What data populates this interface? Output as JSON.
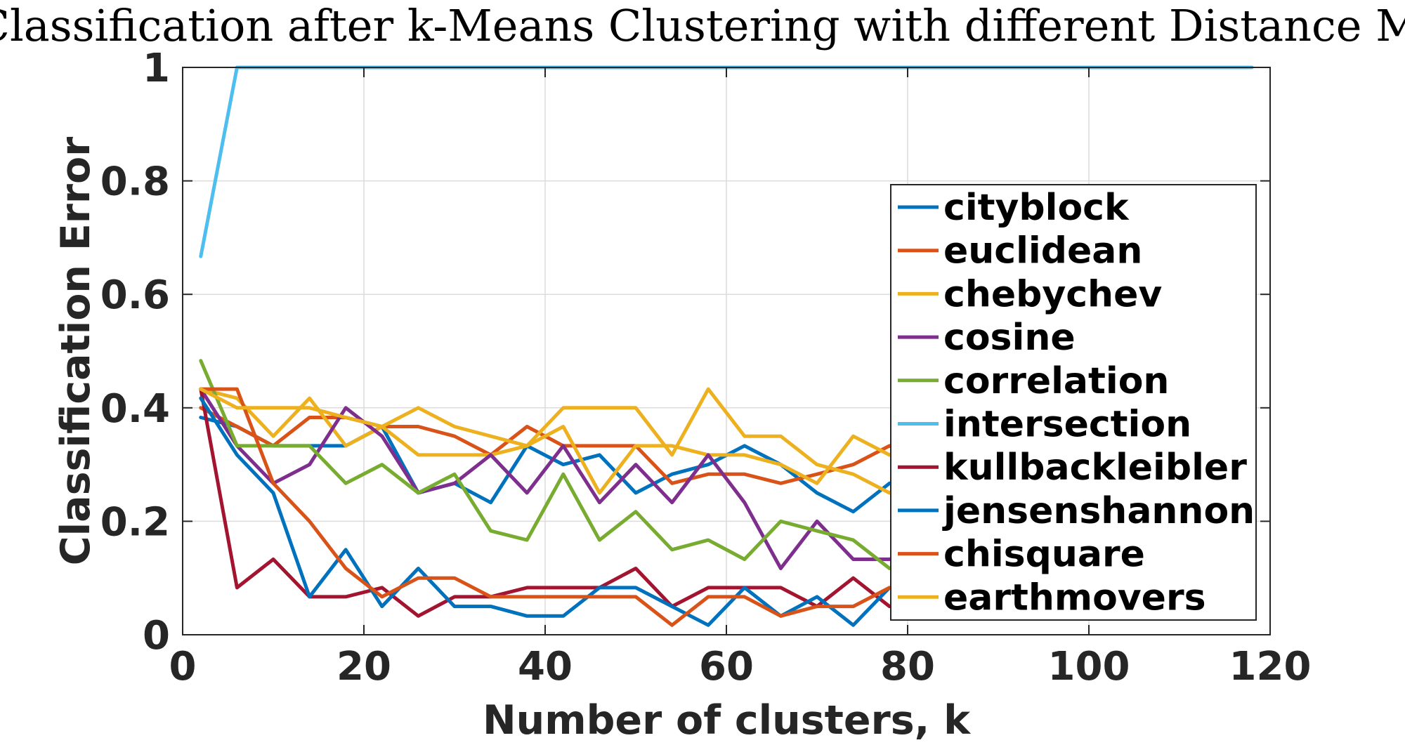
{
  "chart_data": {
    "type": "line",
    "title": "kNN Classification after k-Means Clustering with different Distance Metrics",
    "xlabel": "Number of clusters, k",
    "ylabel": "Classification Error",
    "xlim": [
      0,
      120
    ],
    "ylim": [
      0,
      1
    ],
    "xticks": [
      0,
      20,
      40,
      60,
      80,
      100,
      120
    ],
    "yticks": [
      0,
      0.2,
      0.4,
      0.6,
      0.8,
      1
    ],
    "xtick_labels": [
      "0",
      "20",
      "40",
      "60",
      "80",
      "100",
      "120"
    ],
    "ytick_labels": [
      "0",
      "0.2",
      "0.4",
      "0.6",
      "0.8",
      "1"
    ],
    "grid": true,
    "legend_position": "right",
    "x": [
      2,
      6,
      10,
      14,
      18,
      22,
      26,
      30,
      34,
      38,
      42,
      46,
      50,
      54,
      58,
      62,
      66,
      70,
      74,
      78,
      82,
      86,
      90,
      94,
      98,
      102,
      106,
      110,
      114,
      118
    ],
    "series": [
      {
        "name": "cityblock",
        "color": "#0072BD",
        "values": [
          0.383,
          0.367,
          0.333,
          0.333,
          0.333,
          0.367,
          0.25,
          0.267,
          0.233,
          0.333,
          0.3,
          0.317,
          0.25,
          0.283,
          0.3,
          0.333,
          0.3,
          0.25,
          0.217,
          0.267,
          0.25,
          0.267,
          0.25,
          0.267,
          0.25,
          0.25,
          0.267,
          0.25,
          0.267,
          0.25
        ]
      },
      {
        "name": "euclidean",
        "color": "#D95319",
        "values": [
          0.4,
          0.367,
          0.333,
          0.383,
          0.383,
          0.367,
          0.367,
          0.35,
          0.317,
          0.367,
          0.333,
          0.333,
          0.333,
          0.267,
          0.283,
          0.283,
          0.267,
          0.283,
          0.3,
          0.333,
          0.3,
          0.317,
          0.3,
          0.283,
          0.3,
          0.3,
          0.283,
          0.3,
          0.3,
          0.283
        ]
      },
      {
        "name": "chebychev",
        "color": "#EDB120",
        "values": [
          0.433,
          0.417,
          0.35,
          0.417,
          0.333,
          0.367,
          0.317,
          0.317,
          0.317,
          0.333,
          0.367,
          0.25,
          0.333,
          0.333,
          0.317,
          0.317,
          0.3,
          0.267,
          0.35,
          0.317,
          0.333,
          0.3,
          0.317,
          0.3,
          0.333,
          0.317,
          0.3,
          0.317,
          0.3,
          0.317
        ]
      },
      {
        "name": "cosine",
        "color": "#7E2F8E",
        "values": [
          0.433,
          0.333,
          0.267,
          0.3,
          0.4,
          0.35,
          0.25,
          0.267,
          0.317,
          0.25,
          0.333,
          0.233,
          0.3,
          0.233,
          0.317,
          0.233,
          0.117,
          0.2,
          0.133,
          0.133,
          0.15,
          0.133,
          0.15,
          0.133,
          0.15,
          0.133,
          0.15,
          0.133,
          0.15,
          0.133
        ]
      },
      {
        "name": "correlation",
        "color": "#77AC30",
        "values": [
          0.483,
          0.333,
          0.333,
          0.333,
          0.267,
          0.3,
          0.25,
          0.283,
          0.183,
          0.167,
          0.283,
          0.167,
          0.217,
          0.15,
          0.167,
          0.133,
          0.2,
          0.183,
          0.167,
          0.117,
          0.133,
          0.117,
          0.133,
          0.117,
          0.133,
          0.117,
          0.133,
          0.117,
          0.133,
          0.117
        ]
      },
      {
        "name": "intersection",
        "color": "#4DBEEE",
        "values": [
          0.667,
          1,
          1,
          1,
          1,
          1,
          1,
          1,
          1,
          1,
          1,
          1,
          1,
          1,
          1,
          1,
          1,
          1,
          1,
          1,
          1,
          1,
          1,
          1,
          1,
          1,
          1,
          1,
          1,
          1
        ]
      },
      {
        "name": "kullbackleibler",
        "color": "#A2142F",
        "values": [
          0.433,
          0.083,
          0.133,
          0.067,
          0.067,
          0.083,
          0.033,
          0.067,
          0.067,
          0.083,
          0.083,
          0.083,
          0.117,
          0.05,
          0.083,
          0.083,
          0.083,
          0.05,
          0.1,
          0.05,
          0.067,
          0.05,
          0.067,
          0.05,
          0.067,
          0.05,
          0.067,
          0.05,
          0.067,
          0.05
        ]
      },
      {
        "name": "jensenshannon",
        "color": "#0072BD",
        "values": [
          0.417,
          0.317,
          0.25,
          0.067,
          0.15,
          0.05,
          0.117,
          0.05,
          0.05,
          0.033,
          0.033,
          0.083,
          0.083,
          0.05,
          0.017,
          0.083,
          0.033,
          0.067,
          0.017,
          0.083,
          0.067,
          0.05,
          0.067,
          0.05,
          0.067,
          0.05,
          0.067,
          0.05,
          0.067,
          0.05
        ]
      },
      {
        "name": "chisquare",
        "color": "#D95319",
        "values": [
          0.433,
          0.433,
          0.267,
          0.2,
          0.117,
          0.067,
          0.1,
          0.1,
          0.067,
          0.067,
          0.067,
          0.067,
          0.067,
          0.017,
          0.067,
          0.067,
          0.033,
          0.05,
          0.05,
          0.083,
          0.067,
          0.05,
          0.067,
          0.05,
          0.067,
          0.05,
          0.067,
          0.05,
          0.067,
          0.05
        ]
      },
      {
        "name": "earthmovers",
        "color": "#EDB120",
        "values": [
          0.433,
          0.4,
          0.4,
          0.4,
          0.383,
          0.367,
          0.4,
          0.367,
          0.35,
          0.333,
          0.4,
          0.4,
          0.4,
          0.317,
          0.433,
          0.35,
          0.35,
          0.3,
          0.283,
          0.25,
          0.283,
          0.267,
          0.283,
          0.267,
          0.283,
          0.267,
          0.283,
          0.267,
          0.283,
          0.267
        ]
      }
    ]
  }
}
